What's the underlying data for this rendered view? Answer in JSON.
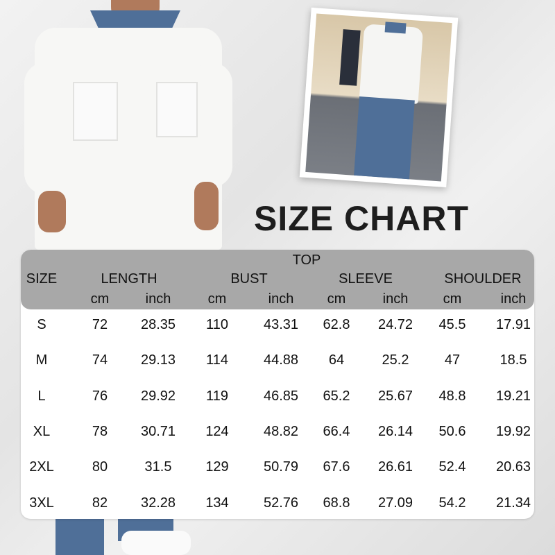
{
  "title": "SIZE CHART",
  "table": {
    "group_header": "TOP",
    "columns": [
      "SIZE",
      "LENGTH",
      "BUST",
      "SLEEVE",
      "SHOULDER"
    ],
    "units": [
      "cm",
      "inch",
      "cm",
      "inch",
      "cm",
      "inch",
      "cm",
      "inch"
    ],
    "rows": [
      [
        "S",
        "72",
        "28.35",
        "110",
        "43.31",
        "62.8",
        "24.72",
        "45.5",
        "17.91"
      ],
      [
        "M",
        "74",
        "29.13",
        "114",
        "44.88",
        "64",
        "25.2",
        "47",
        "18.5"
      ],
      [
        "L",
        "76",
        "29.92",
        "119",
        "46.85",
        "65.2",
        "25.67",
        "48.8",
        "19.21"
      ],
      [
        "XL",
        "78",
        "30.71",
        "124",
        "48.82",
        "66.4",
        "26.14",
        "50.6",
        "19.92"
      ],
      [
        "2XL",
        "80",
        "31.5",
        "129",
        "50.79",
        "67.6",
        "26.61",
        "52.4",
        "20.63"
      ],
      [
        "3XL",
        "82",
        "32.28",
        "134",
        "52.76",
        "68.8",
        "27.09",
        "54.2",
        "21.34"
      ]
    ]
  },
  "colors": {
    "header_bg": "#a8a8a8",
    "denim": "#4f6f98",
    "shirt": "#f7f7f5"
  }
}
